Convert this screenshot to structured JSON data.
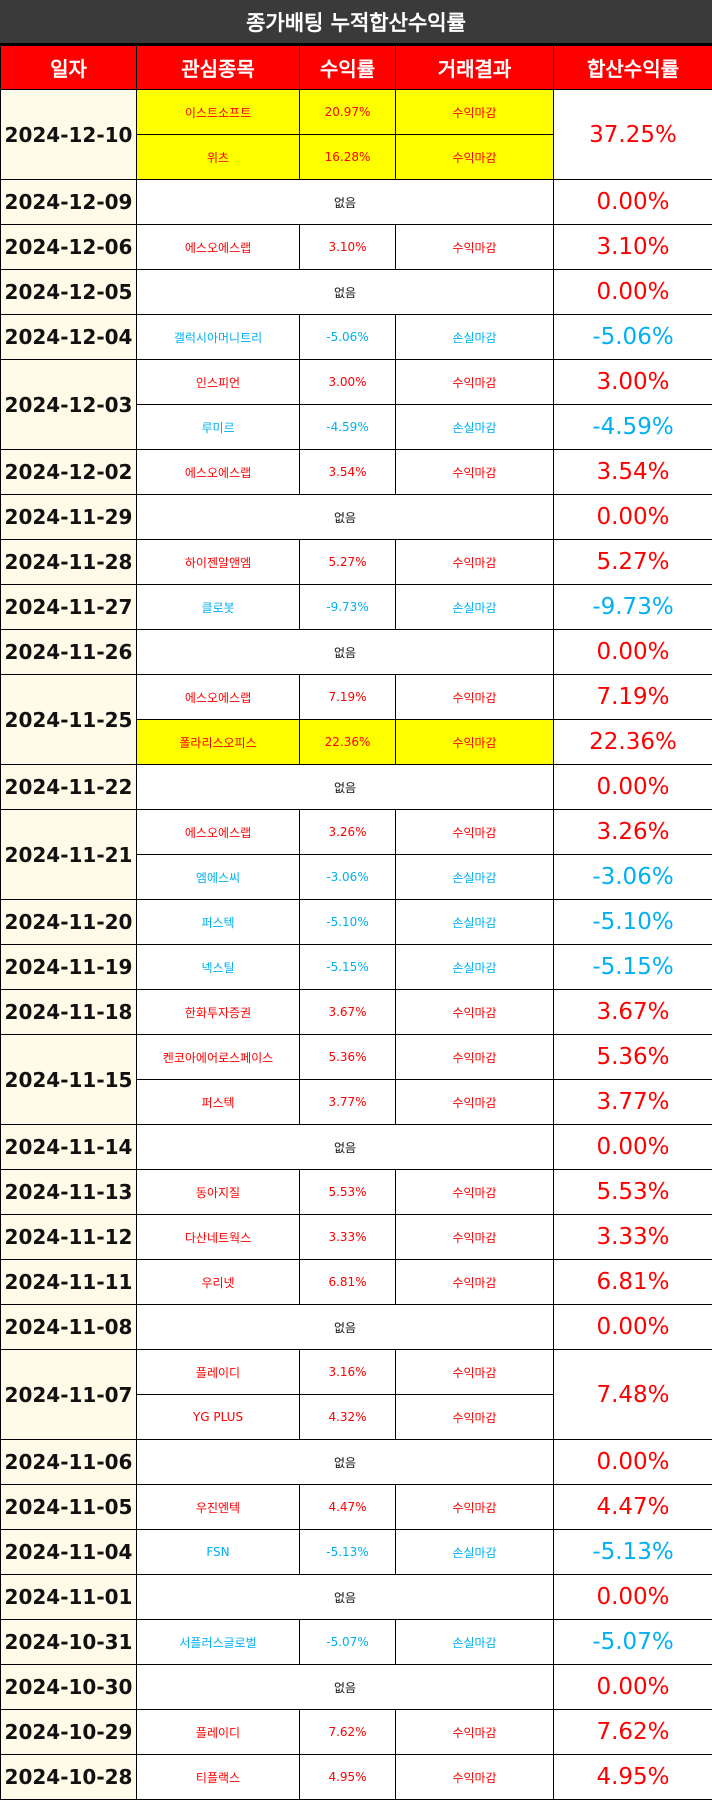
{
  "title": "종가배팅 누적합산수익률",
  "headers": [
    "일자",
    "관심종목",
    "수익률",
    "거래결과",
    "합산수익률"
  ],
  "none_label": "없음",
  "colors": {
    "header_bg": "#ff0000",
    "title_bg": "#3a3a3a",
    "positive": "#ff0000",
    "negative": "#00b0f0",
    "highlight": "#ffff00"
  },
  "rows": [
    {
      "date": "2024-12-10",
      "total": "37.25%",
      "total_sign": "pos",
      "trades": [
        {
          "stock": "이스트소프트",
          "ret": "20.97%",
          "result": "수익마감",
          "sign": "pos",
          "hl": true
        },
        {
          "stock": "위츠",
          "ret": "16.28%",
          "result": "수익마감",
          "sign": "pos",
          "hl": true
        }
      ]
    },
    {
      "date": "2024-12-09",
      "total": "0.00%",
      "total_sign": "zero",
      "trades": []
    },
    {
      "date": "2024-12-06",
      "total": "3.10%",
      "total_sign": "pos",
      "trades": [
        {
          "stock": "에스오에스랩",
          "ret": "3.10%",
          "result": "수익마감",
          "sign": "pos",
          "own_total": true
        }
      ]
    },
    {
      "date": "2024-12-05",
      "total": "0.00%",
      "total_sign": "zero",
      "trades": []
    },
    {
      "date": "2024-12-04",
      "total": "-5.06%",
      "total_sign": "neg",
      "trades": [
        {
          "stock": "갤럭시아머니트리",
          "ret": "-5.06%",
          "result": "손실마감",
          "sign": "neg"
        }
      ]
    },
    {
      "date": "2024-12-03",
      "trades": [
        {
          "stock": "인스피언",
          "ret": "3.00%",
          "result": "수익마감",
          "sign": "pos",
          "total": "3.00%",
          "total_sign": "pos"
        },
        {
          "stock": "루미르",
          "ret": "-4.59%",
          "result": "손실마감",
          "sign": "neg",
          "total": "-4.59%",
          "total_sign": "neg"
        }
      ]
    },
    {
      "date": "2024-12-02",
      "total": "3.54%",
      "total_sign": "pos",
      "trades": [
        {
          "stock": "에스오에스랩",
          "ret": "3.54%",
          "result": "수익마감",
          "sign": "pos"
        }
      ]
    },
    {
      "date": "2024-11-29",
      "total": "0.00%",
      "total_sign": "zero",
      "trades": []
    },
    {
      "date": "2024-11-28",
      "total": "5.27%",
      "total_sign": "pos",
      "trades": [
        {
          "stock": "하이젠알앤엠",
          "ret": "5.27%",
          "result": "수익마감",
          "sign": "pos"
        }
      ]
    },
    {
      "date": "2024-11-27",
      "total": "-9.73%",
      "total_sign": "neg",
      "trades": [
        {
          "stock": "클로봇",
          "ret": "-9.73%",
          "result": "손실마감",
          "sign": "neg"
        }
      ]
    },
    {
      "date": "2024-11-26",
      "total": "0.00%",
      "total_sign": "zero",
      "trades": []
    },
    {
      "date": "2024-11-25",
      "trades": [
        {
          "stock": "에스오에스랩",
          "ret": "7.19%",
          "result": "수익마감",
          "sign": "pos",
          "total": "7.19%",
          "total_sign": "pos"
        },
        {
          "stock": "폴라리스오피스",
          "ret": "22.36%",
          "result": "수익마감",
          "sign": "pos",
          "hl": true,
          "total": "22.36%",
          "total_sign": "pos"
        }
      ]
    },
    {
      "date": "2024-11-22",
      "total": "0.00%",
      "total_sign": "zero",
      "trades": []
    },
    {
      "date": "2024-11-21",
      "trades": [
        {
          "stock": "에스오에스랩",
          "ret": "3.26%",
          "result": "수익마감",
          "sign": "pos",
          "total": "3.26%",
          "total_sign": "pos"
        },
        {
          "stock": "엠에스씨",
          "ret": "-3.06%",
          "result": "손실마감",
          "sign": "neg",
          "total": "-3.06%",
          "total_sign": "neg"
        }
      ]
    },
    {
      "date": "2024-11-20",
      "total": "-5.10%",
      "total_sign": "neg",
      "trades": [
        {
          "stock": "퍼스텍",
          "ret": "-5.10%",
          "result": "손실마감",
          "sign": "neg"
        }
      ]
    },
    {
      "date": "2024-11-19",
      "total": "-5.15%",
      "total_sign": "neg",
      "trades": [
        {
          "stock": "넥스틸",
          "ret": "-5.15%",
          "result": "손실마감",
          "sign": "neg"
        }
      ]
    },
    {
      "date": "2024-11-18",
      "total": "3.67%",
      "total_sign": "pos",
      "trades": [
        {
          "stock": "한화투자증권",
          "ret": "3.67%",
          "result": "수익마감",
          "sign": "pos"
        }
      ]
    },
    {
      "date": "2024-11-15",
      "trades": [
        {
          "stock": "켄코아에어로스페이스",
          "ret": "5.36%",
          "result": "수익마감",
          "sign": "pos",
          "total": "5.36%",
          "total_sign": "pos"
        },
        {
          "stock": "퍼스텍",
          "ret": "3.77%",
          "result": "수익마감",
          "sign": "pos",
          "total": "3.77%",
          "total_sign": "pos"
        }
      ]
    },
    {
      "date": "2024-11-14",
      "total": "0.00%",
      "total_sign": "zero",
      "trades": []
    },
    {
      "date": "2024-11-13",
      "total": "5.53%",
      "total_sign": "pos",
      "trades": [
        {
          "stock": "동아지질",
          "ret": "5.53%",
          "result": "수익마감",
          "sign": "pos"
        }
      ]
    },
    {
      "date": "2024-11-12",
      "total": "3.33%",
      "total_sign": "pos",
      "trades": [
        {
          "stock": "다산네트웍스",
          "ret": "3.33%",
          "result": "수익마감",
          "sign": "pos"
        }
      ]
    },
    {
      "date": "2024-11-11",
      "total": "6.81%",
      "total_sign": "pos",
      "trades": [
        {
          "stock": "우리넷",
          "ret": "6.81%",
          "result": "수익마감",
          "sign": "pos"
        }
      ]
    },
    {
      "date": "2024-11-08",
      "total": "0.00%",
      "total_sign": "zero",
      "trades": []
    },
    {
      "date": "2024-11-07",
      "total": "7.48%",
      "total_sign": "pos",
      "trades": [
        {
          "stock": "플레이디",
          "ret": "3.16%",
          "result": "수익마감",
          "sign": "pos"
        },
        {
          "stock": "YG PLUS",
          "ret": "4.32%",
          "result": "수익마감",
          "sign": "pos"
        }
      ]
    },
    {
      "date": "2024-11-06",
      "total": "0.00%",
      "total_sign": "zero",
      "trades": []
    },
    {
      "date": "2024-11-05",
      "total": "4.47%",
      "total_sign": "pos",
      "trades": [
        {
          "stock": "우진엔텍",
          "ret": "4.47%",
          "result": "수익마감",
          "sign": "pos"
        }
      ]
    },
    {
      "date": "2024-11-04",
      "total": "-5.13%",
      "total_sign": "neg",
      "trades": [
        {
          "stock": "FSN",
          "ret": "-5.13%",
          "result": "손실마감",
          "sign": "neg"
        }
      ]
    },
    {
      "date": "2024-11-01",
      "total": "0.00%",
      "total_sign": "zero",
      "trades": []
    },
    {
      "date": "2024-10-31",
      "total": "-5.07%",
      "total_sign": "neg",
      "trades": [
        {
          "stock": "서플러스글로벌",
          "ret": "-5.07%",
          "result": "손실마감",
          "sign": "neg"
        }
      ]
    },
    {
      "date": "2024-10-30",
      "total": "0.00%",
      "total_sign": "zero",
      "trades": []
    },
    {
      "date": "2024-10-29",
      "total": "7.62%",
      "total_sign": "pos",
      "trades": [
        {
          "stock": "플레이디",
          "ret": "7.62%",
          "result": "수익마감",
          "sign": "pos"
        }
      ]
    },
    {
      "date": "2024-10-28",
      "total": "4.95%",
      "total_sign": "pos",
      "trades": [
        {
          "stock": "티플랙스",
          "ret": "4.95%",
          "result": "수익마감",
          "sign": "pos"
        }
      ]
    }
  ]
}
